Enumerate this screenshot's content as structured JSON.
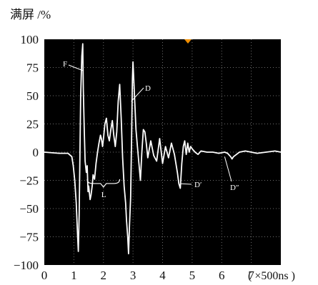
{
  "chart_data": {
    "type": "line",
    "ylabel": "满屏 /%",
    "xlabel": "( ×500ns )",
    "xlim": [
      0,
      8
    ],
    "ylim": [
      -100,
      100
    ],
    "x_ticks": [
      "0",
      "1",
      "2",
      "3",
      "4",
      "5",
      "6",
      "7"
    ],
    "y_ticks": [
      "100",
      "75",
      "50",
      "25",
      "0",
      "−25",
      "−50",
      "−75",
      "−100"
    ],
    "grid": true,
    "colors": {
      "background": "#000000",
      "trace": "#ffffff",
      "grid": "#6e6e6e",
      "marker": "#f29000"
    },
    "series": [
      {
        "x": [
          0,
          0.5,
          0.8,
          0.93,
          0.98,
          1.03,
          1.08,
          1.12,
          1.15,
          1.18,
          1.2,
          1.23,
          1.27,
          1.3,
          1.32,
          1.35,
          1.38,
          1.42,
          1.45,
          1.48,
          1.5,
          1.55,
          1.58,
          1.62,
          1.65,
          1.7,
          1.75,
          1.8,
          1.85,
          1.9,
          1.93,
          1.97,
          2.0,
          2.05,
          2.1,
          2.15,
          2.2,
          2.25,
          2.3,
          2.35,
          2.4,
          2.45,
          2.5,
          2.55,
          2.6,
          2.65,
          2.7,
          2.75,
          2.78,
          2.82,
          2.85,
          2.88,
          2.92,
          2.95,
          2.98,
          3.0,
          3.05,
          3.1,
          3.15,
          3.2,
          3.25,
          3.3,
          3.35,
          3.4,
          3.45,
          3.5,
          3.6,
          3.7,
          3.8,
          3.9,
          4.0,
          4.1,
          4.2,
          4.3,
          4.4,
          4.5,
          4.55,
          4.6,
          4.65,
          4.7,
          4.75,
          4.8,
          4.85,
          4.9,
          4.95,
          5.0,
          5.1,
          5.2,
          5.3,
          5.5,
          5.7,
          5.9,
          6.1,
          6.2,
          6.3,
          6.35,
          6.4,
          6.5,
          6.6,
          6.8,
          7.0,
          7.2,
          7.5,
          7.8,
          8.0
        ],
        "y": [
          0,
          -1,
          -1,
          -4,
          -12,
          -25,
          -45,
          -70,
          -88,
          -55,
          -10,
          50,
          85,
          96,
          55,
          20,
          -8,
          -18,
          -12,
          -35,
          -30,
          -42,
          -38,
          -30,
          -20,
          -24,
          -10,
          0,
          8,
          15,
          12,
          5,
          12,
          25,
          30,
          15,
          10,
          20,
          28,
          15,
          5,
          18,
          45,
          60,
          30,
          -5,
          -30,
          -45,
          -60,
          -75,
          -90,
          -65,
          -40,
          10,
          65,
          80,
          50,
          20,
          5,
          -10,
          -25,
          0,
          20,
          18,
          8,
          -5,
          10,
          -3,
          -8,
          12,
          -10,
          5,
          -5,
          8,
          -2,
          -18,
          -28,
          -32,
          -10,
          5,
          10,
          -2,
          8,
          0,
          5,
          3,
          0,
          -2,
          1,
          0,
          0,
          -1,
          0,
          -1,
          -4,
          -6,
          -4,
          -2,
          0,
          1,
          0,
          -1,
          0,
          1,
          0
        ]
      }
    ],
    "annotations": [
      {
        "label": "F",
        "x": 1.2,
        "y": 83
      },
      {
        "label": "D",
        "x": 3.0,
        "y": 65
      },
      {
        "label": "L",
        "x": 1.95,
        "y": -45
      },
      {
        "label": "D′",
        "x": 4.65,
        "y": -28
      },
      {
        "label": "D″",
        "x": 6.3,
        "y": -6
      }
    ]
  }
}
